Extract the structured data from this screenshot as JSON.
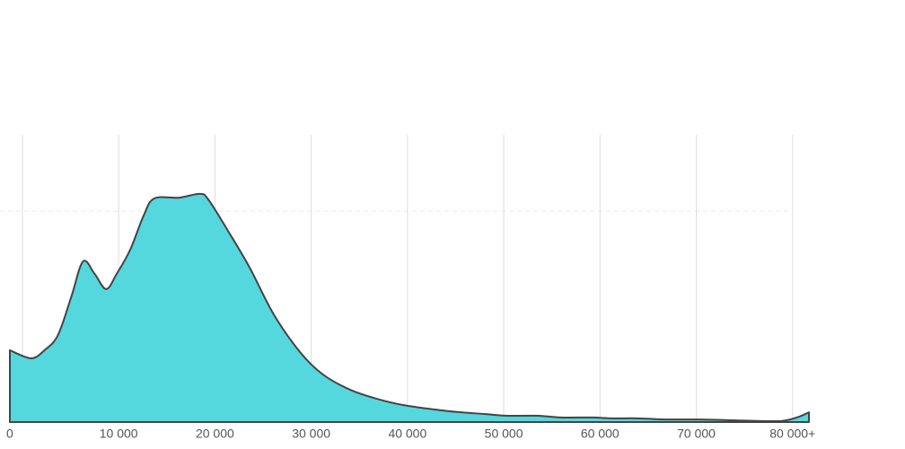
{
  "chart_data": {
    "type": "area",
    "x": [
      -1300,
      900,
      2300,
      3700,
      5100,
      6300,
      7500,
      8700,
      9800,
      11200,
      12600,
      13700,
      16300,
      18400,
      19300,
      21400,
      23600,
      26100,
      28900,
      31200,
      34000,
      36800,
      39600,
      44300,
      48000,
      50400,
      53600,
      55900,
      59200,
      61100,
      63900,
      66700,
      70400,
      74100,
      77900,
      79300,
      80700,
      81700
    ],
    "values": [
      25,
      22.2,
      25,
      30.3,
      43.8,
      55.9,
      51.6,
      46.3,
      51.6,
      60,
      71.9,
      77.8,
      78.1,
      79.4,
      77.5,
      66.3,
      53.8,
      37.5,
      24.1,
      16.6,
      11.3,
      8.1,
      5.9,
      3.8,
      2.8,
      2.2,
      2.2,
      1.6,
      1.6,
      1.3,
      1.3,
      0.9,
      0.9,
      0.6,
      0.3,
      0.6,
      1.9,
      3.4
    ],
    "color": "#52d6dd",
    "line_color": "#444444",
    "xlim": [
      -1300,
      81700
    ],
    "xticks": [
      0,
      {
        "value": 10000,
        "label": "10 000"
      },
      {
        "value": 20000,
        "label": "20 000"
      },
      {
        "value": 30000,
        "label": "30 000"
      },
      {
        "value": 40000,
        "label": "40 000"
      },
      {
        "value": 50000,
        "label": "50 000"
      },
      {
        "value": 60000,
        "label": "60 000"
      },
      {
        "value": 70000,
        "label": "70 000"
      },
      {
        "value": 80000,
        "label": "80 000+"
      }
    ],
    "ylim": [
      0,
      100
    ],
    "yticks": [
      73.4
    ],
    "grid": true
  }
}
